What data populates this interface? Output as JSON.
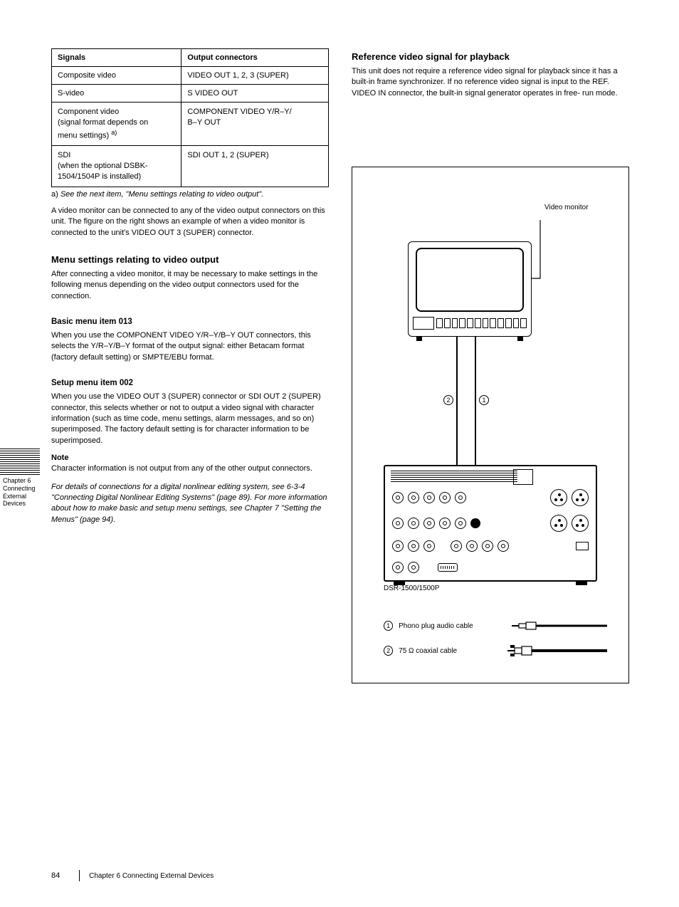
{
  "table": {
    "header": [
      "Signals",
      "Output connectors"
    ],
    "rows": [
      [
        "Composite video",
        "VIDEO OUT 1, 2, 3 (SUPER)"
      ],
      [
        "S-video",
        "S VIDEO OUT"
      ],
      [
        "Component video<br>(signal format depends on<br>menu settings) <sup>a)</sup>",
        "COMPONENT VIDEO Y/R–Y/<br>B–Y OUT"
      ],
      [
        "SDI<br>(when the optional DSBK-<br>1504/1504P is installed)",
        "SDI OUT 1, 2 (SUPER)"
      ]
    ],
    "footnote_ref": "a)",
    "footnote": "See the next item, \"Menu settings relating to video output\"."
  },
  "left_paragraph": "A video monitor can be connected to any of the video\noutput connectors on this unit. The figure on the right\nshows an example of when a video monitor is connected\nto the unit's VIDEO OUT 3 (SUPER) connector.",
  "sec1_title": "Menu settings relating to video output",
  "sec1_body": "After connecting a video monitor, it may be necessary to\nmake settings in the following menus depending on the\nvideo output connectors used for the connection.",
  "sub1_title": "Basic menu item 013",
  "sub1_body": "When you use the COMPONENT VIDEO Y/R–Y/B–Y\nOUT connectors, this selects the Y/R–Y/B–Y format of\nthe output signal: either Betacam format (factory default\nsetting) or SMPTE/EBU format.",
  "sub2_title": "Setup menu item 002",
  "sub2_body": "When you use the VIDEO OUT 3 (SUPER) connector or\nSDI OUT 2 (SUPER) connector, this selects whether or\nnot to output a video signal with character information\n(such as time code, menu settings, alarm messages, and so\non) superimposed. The factory default setting is for\ncharacter information to be superimposed.",
  "note_head": "Note",
  "note_body": "Character information is not output from any of the other\noutput connectors.",
  "ref_text": "For details of connections for a digital nonlinear editing\nsystem, see 6-3-4 \"Connecting Digital Nonlinear Editing\nSystems\" (page 89).\nFor more information about how to make basic and setup\nmenu settings, see Chapter 7 \"Setting the Menus\" (page\n94).",
  "right_sec_title": "Reference video signal for playback",
  "right_sec_body": "This unit does not require a reference video signal for\nplayback since it has a built-in frame synchronizer. If no\nreference video signal is input to the REF. VIDEO IN\nconnector, the built-in signal generator operates in free-\nrun mode.",
  "diagram": {
    "monitor_label": "Video monitor",
    "mid_num_1": "1",
    "mid_num_2": "2",
    "vcr_label": "DSR-1500/1500P",
    "legend": [
      {
        "num": "1",
        "text": "Phono plug audio cable",
        "plug_type": "phono"
      },
      {
        "num": "2",
        "text": "75 Ω coaxial cable",
        "plug_type": "bnc"
      }
    ]
  },
  "side_tab": "Chapter 6  Connecting External Devices",
  "footer": {
    "page": "84",
    "chapter": "Chapter 6  Connecting External Devices"
  }
}
